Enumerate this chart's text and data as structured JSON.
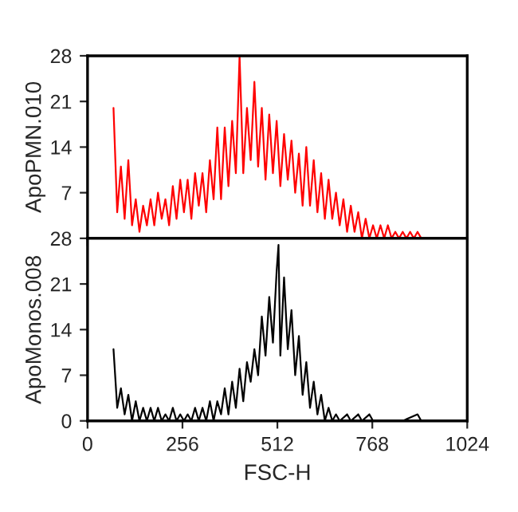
{
  "chart_data": [
    {
      "type": "line",
      "ylabel": "ApoPMN.010",
      "xlim": [
        0,
        1024
      ],
      "xticks": [
        0,
        256,
        512,
        768,
        1024
      ],
      "ylim": [
        0,
        28
      ],
      "yticks": [
        7,
        14,
        21,
        28
      ],
      "tick_labels": "y",
      "grid": false,
      "legend": false,
      "series": [
        {
          "color": "#ff0000",
          "x": [
            70,
            80,
            90,
            100,
            110,
            120,
            130,
            140,
            150,
            160,
            170,
            180,
            190,
            200,
            210,
            220,
            230,
            240,
            250,
            260,
            270,
            280,
            290,
            300,
            310,
            320,
            330,
            340,
            350,
            360,
            370,
            380,
            390,
            400,
            410,
            420,
            430,
            440,
            450,
            460,
            470,
            480,
            490,
            500,
            510,
            520,
            530,
            540,
            550,
            560,
            570,
            580,
            590,
            600,
            610,
            620,
            630,
            640,
            650,
            660,
            670,
            680,
            690,
            700,
            710,
            720,
            730,
            740,
            750,
            760,
            770,
            780,
            790,
            800,
            810,
            820,
            830,
            840,
            850,
            860,
            870,
            880,
            890,
            900
          ],
          "values": [
            20,
            4,
            11,
            3,
            12,
            2,
            6,
            1,
            5,
            2,
            6,
            2,
            7,
            3,
            6,
            2,
            8,
            3,
            9,
            4,
            9,
            3,
            10,
            5,
            10,
            4,
            12,
            6,
            17,
            6,
            17,
            8,
            18,
            10,
            28,
            10,
            20,
            12,
            24,
            11,
            20,
            9,
            19,
            10,
            18,
            8,
            16,
            9,
            15,
            7,
            13,
            5,
            14,
            5,
            12,
            4,
            10,
            3,
            9,
            3,
            7,
            2,
            6,
            1,
            5,
            1,
            4,
            0,
            3,
            0,
            2,
            0,
            2,
            0,
            2,
            0,
            1,
            0,
            1,
            0,
            1,
            0,
            1,
            0
          ]
        }
      ]
    },
    {
      "type": "line",
      "ylabel": "ApoMonos.008",
      "xlabel": "FSC-H",
      "xlim": [
        0,
        1024
      ],
      "xticks": [
        0,
        256,
        512,
        768,
        1024
      ],
      "ylim": [
        0,
        28
      ],
      "yticks": [
        0,
        7,
        14,
        21,
        28
      ],
      "grid": false,
      "legend": false,
      "series": [
        {
          "color": "#000000",
          "x": [
            70,
            80,
            90,
            100,
            110,
            120,
            130,
            140,
            150,
            160,
            170,
            180,
            190,
            200,
            210,
            220,
            230,
            240,
            250,
            260,
            270,
            280,
            290,
            300,
            310,
            320,
            330,
            340,
            350,
            360,
            370,
            380,
            390,
            400,
            410,
            420,
            430,
            440,
            450,
            460,
            470,
            480,
            490,
            500,
            510,
            515,
            520,
            530,
            540,
            550,
            560,
            570,
            580,
            590,
            600,
            610,
            620,
            630,
            640,
            650,
            660,
            670,
            680,
            700,
            710,
            730,
            740,
            760,
            770,
            800,
            850,
            890,
            900
          ],
          "values": [
            11,
            2,
            5,
            1,
            4,
            0,
            3,
            0,
            2,
            0,
            2,
            0,
            2,
            0,
            1,
            0,
            2,
            0,
            1,
            0,
            1,
            0,
            2,
            0,
            2,
            0,
            3,
            0,
            3,
            1,
            5,
            1,
            6,
            2,
            8,
            3,
            9,
            6,
            11,
            7,
            16,
            10,
            19,
            12,
            23,
            27,
            10,
            22,
            11,
            17,
            7,
            13,
            4,
            9,
            2,
            6,
            1,
            4,
            0,
            2,
            0,
            1,
            0,
            1,
            0,
            1,
            0,
            1,
            0,
            0,
            0,
            1,
            0
          ]
        }
      ]
    }
  ]
}
